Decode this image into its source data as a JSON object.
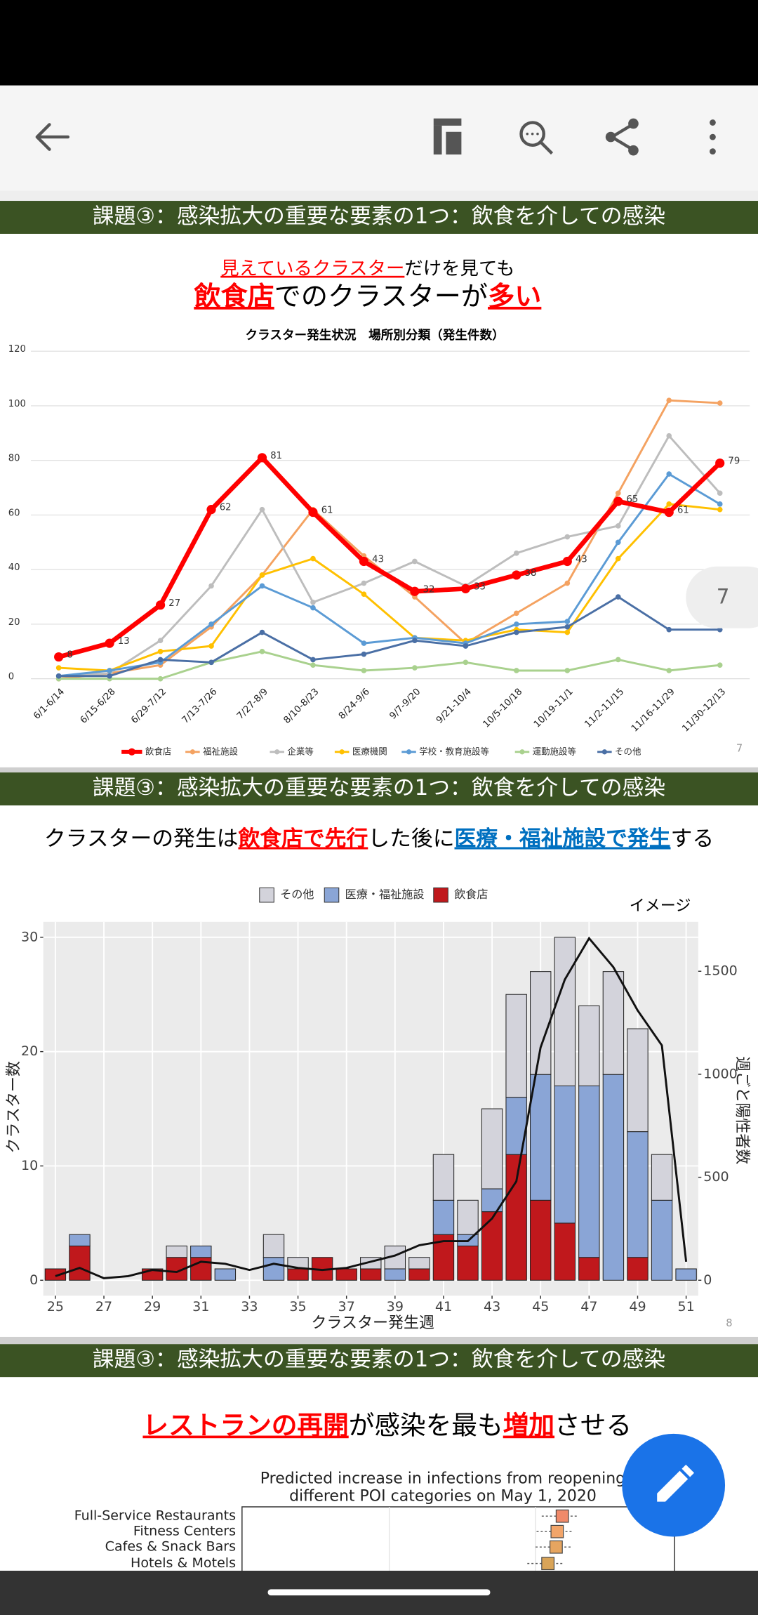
{
  "toolbar": {
    "page_indicator": "7"
  },
  "slides": [
    {
      "header": "課題③：感染拡大の重要な要素の1つ：飲食を介しての感染",
      "headline": [
        [
          "見えているクラスター",
          "だけを見ても"
        ],
        [
          "飲食店",
          "でのクラスターが",
          "多い"
        ]
      ],
      "page_number": "7",
      "chart_data": {
        "type": "line",
        "title": "クラスター発生状況　場所別分類（発生件数）",
        "categories": [
          "6/1-6/14",
          "6/15-6/28",
          "6/29-7/12",
          "7/13-7/26",
          "7/27-8/9",
          "8/10-8/23",
          "8/24-9/6",
          "9/7-9/20",
          "9/21-10/4",
          "10/5-10/18",
          "10/19-11/1",
          "11/2-11/15",
          "11/16-11/29",
          "11/30-12/13"
        ],
        "series": [
          {
            "name": "飲食店",
            "color": "#ff0000",
            "values": [
              8,
              13,
              27,
              62,
              81,
              61,
              43,
              32,
              33,
              38,
              43,
              65,
              61,
              79
            ],
            "data_labels": true
          },
          {
            "name": "福祉施設",
            "color": "#f4a261",
            "values": [
              0,
              2,
              5,
              19,
              38,
              62,
              45,
              30,
              13,
              24,
              35,
              68,
              102,
              101
            ]
          },
          {
            "name": "企業等",
            "color": "#bdbdbd",
            "values": [
              1,
              2,
              14,
              34,
              62,
              28,
              35,
              43,
              34,
              46,
              52,
              56,
              89,
              68
            ]
          },
          {
            "name": "医療機関",
            "color": "#ffc000",
            "values": [
              4,
              3,
              10,
              12,
              38,
              44,
              31,
              15,
              14,
              18,
              17,
              44,
              64,
              62
            ]
          },
          {
            "name": "学校・教育施設等",
            "color": "#5b9bd5",
            "values": [
              1,
              3,
              6,
              20,
              34,
              26,
              13,
              15,
              13,
              20,
              21,
              50,
              75,
              64
            ]
          },
          {
            "name": "運動施設等",
            "color": "#a9d18e",
            "values": [
              0,
              0,
              0,
              6,
              10,
              5,
              3,
              4,
              6,
              3,
              3,
              7,
              3,
              5
            ]
          },
          {
            "name": "その他",
            "color": "#4a6fa5",
            "values": [
              1,
              1,
              7,
              6,
              17,
              7,
              9,
              14,
              12,
              17,
              19,
              30,
              18,
              18
            ]
          }
        ],
        "ylim": [
          0,
          120
        ],
        "yticks": [
          0,
          20,
          40,
          60,
          80,
          100,
          120
        ],
        "grid": true,
        "legend": "bottom"
      }
    },
    {
      "header": "課題③：感染拡大の重要な要素の1つ：飲食を介しての感染",
      "headline": [
        "クラスターの発生は",
        "飲食店で先行",
        "した後に",
        "医療・福祉施設で発生",
        "する"
      ],
      "page_number": "8",
      "chart_data": {
        "type": "bar",
        "stacked": true,
        "annotation": "イメージ",
        "x_label": "クラスター発生週",
        "y_label": "クラスター数",
        "y2_label": "週ごと陽性者数",
        "x": [
          25,
          26,
          27,
          28,
          29,
          30,
          31,
          32,
          33,
          34,
          35,
          36,
          37,
          38,
          39,
          40,
          41,
          42,
          43,
          44,
          45,
          46,
          47,
          48,
          49,
          50,
          51
        ],
        "series": [
          {
            "name": "飲食店",
            "color": "#c0181c",
            "values": [
              1,
              3,
              0,
              0,
              1,
              2,
              2,
              0,
              0,
              0,
              1,
              2,
              1,
              1,
              0,
              1,
              4,
              3,
              6,
              11,
              7,
              5,
              2,
              0,
              2,
              0,
              0
            ]
          },
          {
            "name": "医療・福祉施設",
            "color": "#8aa5d6",
            "values": [
              0,
              1,
              0,
              0,
              0,
              0,
              1,
              1,
              0,
              2,
              0,
              0,
              0,
              0,
              1,
              0,
              3,
              1,
              2,
              5,
              11,
              12,
              15,
              18,
              11,
              7,
              1
            ]
          },
          {
            "name": "その他",
            "color": "#d3d3db",
            "values": [
              0,
              0,
              0,
              0,
              0,
              1,
              0,
              0,
              0,
              2,
              1,
              0,
              0,
              1,
              2,
              1,
              4,
              3,
              7,
              9,
              9,
              13,
              7,
              9,
              9,
              4,
              0
            ]
          },
          {
            "type": "line",
            "axis": "y2",
            "color": "#111111",
            "values": [
              20,
              60,
              10,
              20,
              50,
              40,
              90,
              80,
              50,
              80,
              60,
              50,
              60,
              90,
              120,
              170,
              190,
              190,
              300,
              480,
              1130,
              1460,
              1660,
              1520,
              1310,
              1140,
              90
            ]
          }
        ],
        "xlim": [
          24.5,
          51.5
        ],
        "xticks": [
          25,
          27,
          29,
          31,
          33,
          35,
          37,
          39,
          41,
          43,
          45,
          47,
          49,
          51
        ],
        "ylim": [
          -1.35,
          31.35
        ],
        "yticks": [
          0,
          10,
          20,
          30
        ],
        "y2lim": [
          -75,
          1740
        ],
        "y2ticks": [
          0,
          500,
          1000,
          1500
        ],
        "grid": true,
        "legend": "top"
      }
    },
    {
      "header": "課題③：感染拡大の重要な要素の1つ：飲食を介しての感染",
      "headline": [
        "レストランの再開",
        "が感染を最も",
        "増加",
        "させる"
      ],
      "chart_data": {
        "type": "box",
        "title": [
          "Predicted increase in infections from reopening",
          "different POI categories on May 1, 2020"
        ],
        "categories": [
          "Full-Service Restaurants",
          "Fitness Centers",
          "Cafes & Snack Bars",
          "Hotels & Motels"
        ]
      }
    }
  ]
}
